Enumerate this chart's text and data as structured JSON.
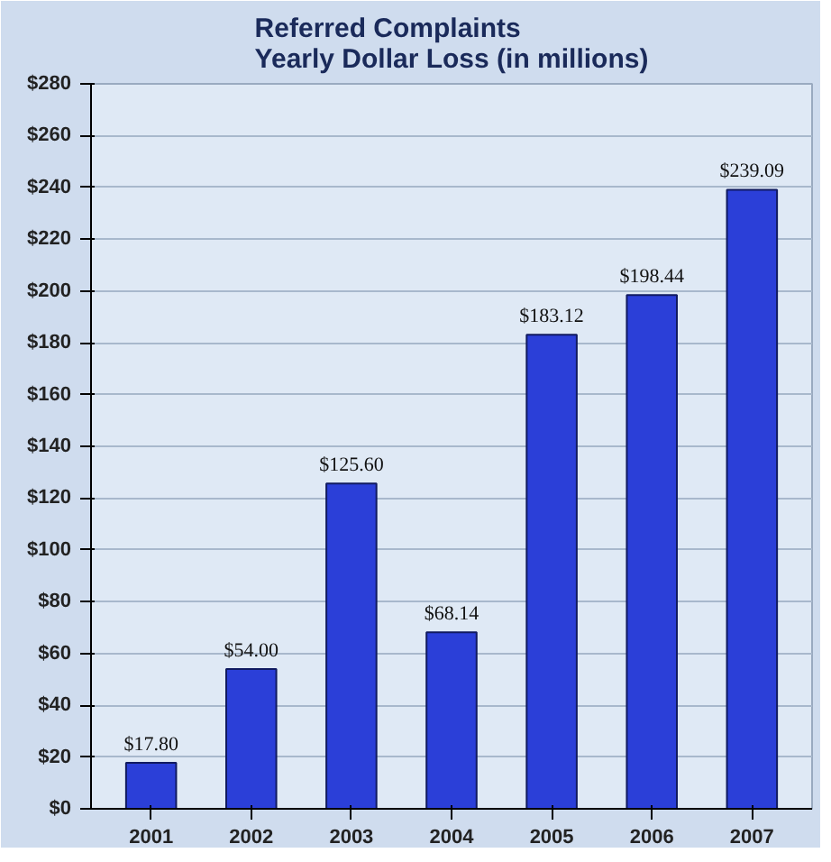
{
  "chart_data": {
    "type": "bar",
    "title": "Referred Complaints\nYearly Dollar Loss (in millions)",
    "categories": [
      "2001",
      "2002",
      "2003",
      "2004",
      "2005",
      "2006",
      "2007"
    ],
    "values": [
      17.8,
      54.0,
      125.6,
      68.14,
      183.12,
      198.44,
      239.09
    ],
    "value_labels": [
      "$17.80",
      "$54.00",
      "$125.60",
      "$68.14",
      "$183.12",
      "$198.44",
      "$239.09"
    ],
    "color": "#2b3fd8",
    "ylim": [
      0,
      280
    ],
    "yticks": [
      {
        "value": 0,
        "label": "$0"
      },
      {
        "value": 20,
        "label": "$20"
      },
      {
        "value": 40,
        "label": "$40"
      },
      {
        "value": 60,
        "label": "$60"
      },
      {
        "value": 80,
        "label": "$80"
      },
      {
        "value": 100,
        "label": "$100"
      },
      {
        "value": 120,
        "label": "$120"
      },
      {
        "value": 140,
        "label": "$140"
      },
      {
        "value": 160,
        "label": "$160"
      },
      {
        "value": 180,
        "label": "$180"
      },
      {
        "value": 200,
        "label": "$200"
      },
      {
        "value": 220,
        "label": "$220"
      },
      {
        "value": 240,
        "label": "$240"
      },
      {
        "value": 260,
        "label": "$260"
      },
      {
        "value": 280,
        "label": "$280"
      }
    ],
    "grid": "y"
  }
}
